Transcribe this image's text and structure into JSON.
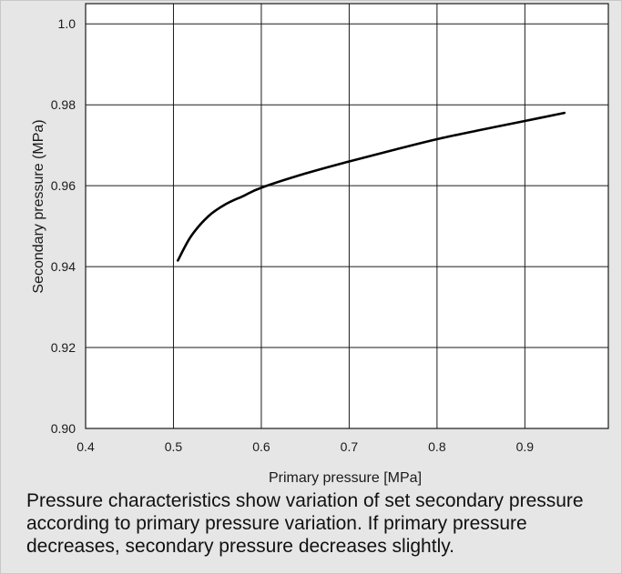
{
  "colors": {
    "background_panel": "#e6e6e6",
    "plot_background": "#ffffff",
    "grid": "#1a1a1a",
    "curve": "#000000",
    "text": "#1a1a1a"
  },
  "chart_data": {
    "type": "line",
    "xlabel": "Primary pressure [MPa]",
    "ylabel": "Secondary pressure (MPa)",
    "xlim": [
      0.4,
      0.995
    ],
    "ylim": [
      0.9,
      1.005
    ],
    "x_ticks": [
      0.4,
      0.5,
      0.6,
      0.7,
      0.8,
      0.9
    ],
    "x_tick_labels": [
      "0.4",
      "0.5",
      "0.6",
      "0.7",
      "0.8",
      "0.9"
    ],
    "y_ticks": [
      0.9,
      0.92,
      0.94,
      0.96,
      0.98,
      1.0
    ],
    "y_tick_labels": [
      "0.90",
      "0.92",
      "0.94",
      "0.96",
      "0.98",
      "1.0"
    ],
    "grid": true,
    "series": [
      {
        "x": [
          0.505,
          0.52,
          0.54,
          0.56,
          0.58,
          0.6,
          0.65,
          0.7,
          0.75,
          0.8,
          0.85,
          0.9,
          0.945
        ],
        "y": [
          0.9415,
          0.9475,
          0.9525,
          0.9555,
          0.9575,
          0.9595,
          0.963,
          0.966,
          0.9688,
          0.9715,
          0.9738,
          0.976,
          0.978
        ]
      }
    ]
  },
  "caption": "Pressure characteristics show variation of set secondary pressure according to primary pressure variation. If primary pressure decreases, secondary pressure decreases slightly."
}
